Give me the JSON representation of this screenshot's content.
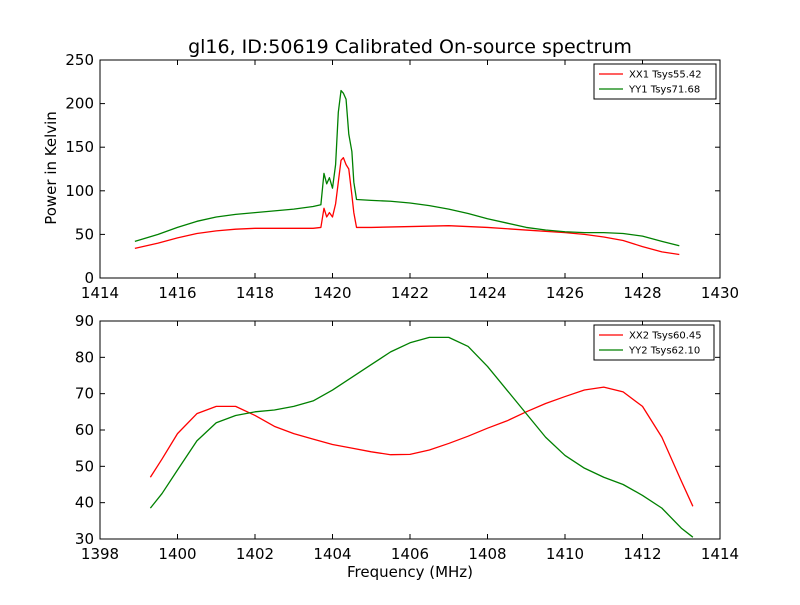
{
  "figure": {
    "title": "gl16, ID:50619 Calibrated On-source spectrum",
    "xlabel": "Frequency (MHz)",
    "ylabel_top": "Power in Kelvin"
  },
  "colors": {
    "red": "#ff0000",
    "green": "#008000"
  },
  "chart_data": [
    {
      "type": "line",
      "title": "gl16, ID:50619 Calibrated On-source spectrum",
      "ylabel": "Power in Kelvin",
      "xlim": [
        1414,
        1430
      ],
      "ylim": [
        0,
        250
      ],
      "xticks": [
        "1414",
        "1416",
        "1418",
        "1420",
        "1422",
        "1424",
        "1426",
        "1428",
        "1430"
      ],
      "yticks": [
        "0",
        "50",
        "100",
        "150",
        "200",
        "250"
      ],
      "legend": "top-right",
      "series": [
        {
          "name": "XX1 Tsys55.42",
          "color": "#ff0000",
          "points": [
            [
              1414.9,
              34
            ],
            [
              1415.5,
              40
            ],
            [
              1416,
              46
            ],
            [
              1416.5,
              51
            ],
            [
              1417,
              54
            ],
            [
              1417.5,
              56
            ],
            [
              1418,
              57
            ],
            [
              1418.5,
              57
            ],
            [
              1419,
              57
            ],
            [
              1419.5,
              57
            ],
            [
              1419.7,
              58
            ],
            [
              1419.78,
              80
            ],
            [
              1419.85,
              70
            ],
            [
              1419.92,
              75
            ],
            [
              1420.0,
              70
            ],
            [
              1420.08,
              85
            ],
            [
              1420.15,
              110
            ],
            [
              1420.22,
              135
            ],
            [
              1420.28,
              138
            ],
            [
              1420.35,
              130
            ],
            [
              1420.42,
              125
            ],
            [
              1420.5,
              95
            ],
            [
              1420.55,
              75
            ],
            [
              1420.62,
              58
            ],
            [
              1421,
              58
            ],
            [
              1422,
              59
            ],
            [
              1423,
              60
            ],
            [
              1424,
              58
            ],
            [
              1425,
              55
            ],
            [
              1426,
              52
            ],
            [
              1426.5,
              50
            ],
            [
              1427,
              47
            ],
            [
              1427.5,
              43
            ],
            [
              1428,
              36
            ],
            [
              1428.5,
              30
            ],
            [
              1428.95,
              27
            ]
          ]
        },
        {
          "name": "YY1 Tsys71.68",
          "color": "#008000",
          "points": [
            [
              1414.9,
              42
            ],
            [
              1415.5,
              50
            ],
            [
              1416,
              58
            ],
            [
              1416.5,
              65
            ],
            [
              1417,
              70
            ],
            [
              1417.5,
              73
            ],
            [
              1418,
              75
            ],
            [
              1418.5,
              77
            ],
            [
              1419,
              79
            ],
            [
              1419.5,
              82
            ],
            [
              1419.7,
              84
            ],
            [
              1419.78,
              120
            ],
            [
              1419.85,
              108
            ],
            [
              1419.92,
              115
            ],
            [
              1420.0,
              103
            ],
            [
              1420.08,
              130
            ],
            [
              1420.15,
              190
            ],
            [
              1420.22,
              215
            ],
            [
              1420.28,
              212
            ],
            [
              1420.35,
              205
            ],
            [
              1420.42,
              165
            ],
            [
              1420.5,
              145
            ],
            [
              1420.55,
              110
            ],
            [
              1420.62,
              90
            ],
            [
              1421,
              89
            ],
            [
              1421.5,
              88
            ],
            [
              1422,
              86
            ],
            [
              1422.5,
              83
            ],
            [
              1423,
              79
            ],
            [
              1423.5,
              74
            ],
            [
              1424,
              68
            ],
            [
              1424.5,
              63
            ],
            [
              1425,
              58
            ],
            [
              1425.5,
              55
            ],
            [
              1426,
              53
            ],
            [
              1426.5,
              52
            ],
            [
              1427,
              52
            ],
            [
              1427.5,
              51
            ],
            [
              1428,
              48
            ],
            [
              1428.5,
              42
            ],
            [
              1428.95,
              37
            ]
          ]
        }
      ]
    },
    {
      "type": "line",
      "xlabel": "Frequency (MHz)",
      "xlim": [
        1398,
        1414
      ],
      "ylim": [
        30,
        90
      ],
      "xticks": [
        "1398",
        "1400",
        "1402",
        "1404",
        "1406",
        "1408",
        "1410",
        "1412",
        "1414"
      ],
      "yticks": [
        "30",
        "40",
        "50",
        "60",
        "70",
        "80",
        "90"
      ],
      "legend": "top-right",
      "series": [
        {
          "name": "XX2 Tsys60.45",
          "color": "#ff0000",
          "points": [
            [
              1399.3,
              47
            ],
            [
              1399.6,
              52
            ],
            [
              1400,
              59
            ],
            [
              1400.5,
              64.5
            ],
            [
              1401,
              66.5
            ],
            [
              1401.5,
              66.5
            ],
            [
              1402,
              64
            ],
            [
              1402.5,
              61
            ],
            [
              1403,
              59
            ],
            [
              1403.5,
              57.5
            ],
            [
              1404,
              56
            ],
            [
              1404.5,
              55
            ],
            [
              1405,
              54
            ],
            [
              1405.5,
              53.2
            ],
            [
              1406,
              53.3
            ],
            [
              1406.5,
              54.5
            ],
            [
              1407,
              56.3
            ],
            [
              1407.5,
              58.3
            ],
            [
              1408,
              60.5
            ],
            [
              1408.5,
              62.5
            ],
            [
              1409,
              65
            ],
            [
              1409.5,
              67.3
            ],
            [
              1410,
              69.2
            ],
            [
              1410.5,
              71
            ],
            [
              1411,
              71.8
            ],
            [
              1411.5,
              70.5
            ],
            [
              1412,
              66.5
            ],
            [
              1412.5,
              58
            ],
            [
              1413,
              46
            ],
            [
              1413.3,
              39
            ]
          ]
        },
        {
          "name": "YY2 Tsys62.10",
          "color": "#008000",
          "points": [
            [
              1399.3,
              38.5
            ],
            [
              1399.6,
              42.5
            ],
            [
              1400,
              49
            ],
            [
              1400.5,
              57
            ],
            [
              1401,
              62
            ],
            [
              1401.5,
              64
            ],
            [
              1402,
              65
            ],
            [
              1402.5,
              65.5
            ],
            [
              1403,
              66.5
            ],
            [
              1403.5,
              68
            ],
            [
              1404,
              71
            ],
            [
              1404.5,
              74.5
            ],
            [
              1405,
              78
            ],
            [
              1405.5,
              81.5
            ],
            [
              1406,
              84
            ],
            [
              1406.5,
              85.5
            ],
            [
              1407,
              85.5
            ],
            [
              1407.5,
              83
            ],
            [
              1408,
              77.5
            ],
            [
              1408.5,
              71
            ],
            [
              1409,
              64.5
            ],
            [
              1409.5,
              58
            ],
            [
              1410,
              53
            ],
            [
              1410.5,
              49.5
            ],
            [
              1411,
              47
            ],
            [
              1411.5,
              45
            ],
            [
              1412,
              42
            ],
            [
              1412.5,
              38.5
            ],
            [
              1413,
              33
            ],
            [
              1413.3,
              30.5
            ]
          ]
        }
      ]
    }
  ]
}
